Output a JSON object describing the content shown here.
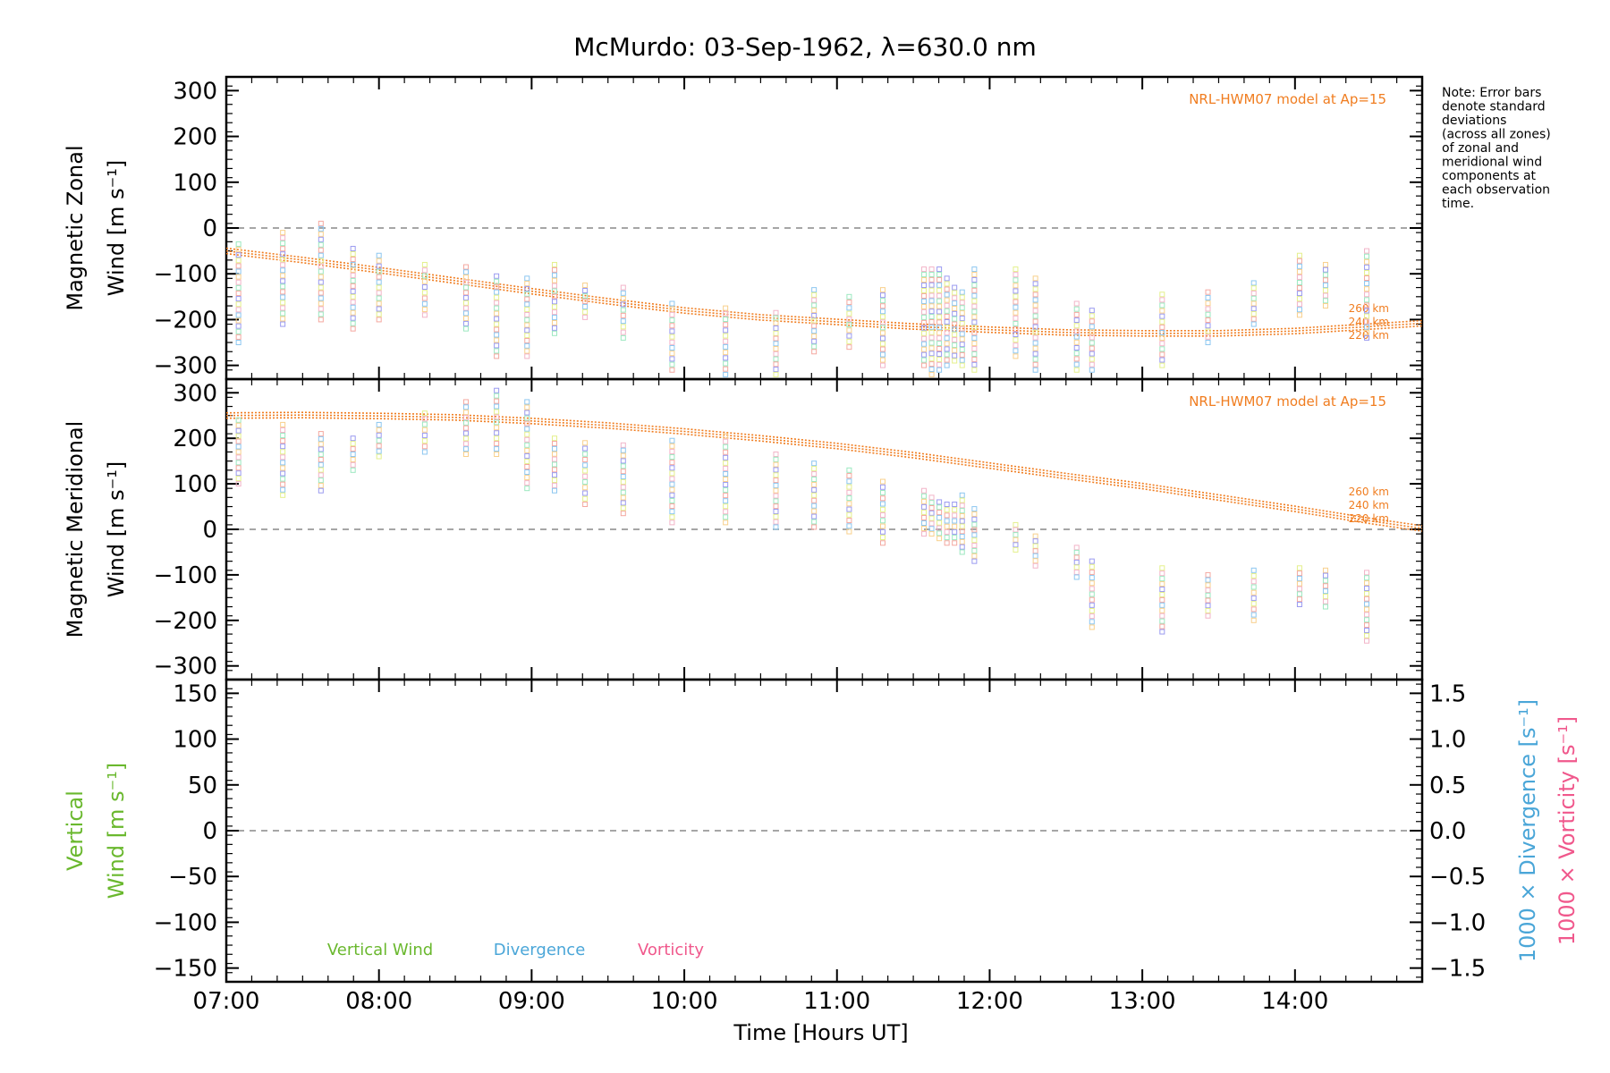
{
  "title": "McMurdo: 03-Sep-1962, λ=630.0 nm",
  "note": [
    "Note: Error bars",
    "denote standard",
    "deviations",
    "(across all zones)",
    "of zonal and",
    "meridional wind",
    "components at",
    "each observation",
    "time."
  ],
  "colors": {
    "model": "#f07d20",
    "vertical": "#6ab82e",
    "divergence": "#4aa6d8",
    "vorticity": "#f0588c",
    "zero_line": "#888888"
  },
  "chart_data": [
    {
      "type": "scatter",
      "panel": "zonal",
      "ylabel_lines": [
        "Magnetic Zonal",
        "Wind [m s⁻¹]"
      ],
      "ylim": [
        -330,
        330
      ],
      "yticks": [
        300,
        200,
        100,
        0,
        -100,
        -200,
        -300
      ],
      "xlim": [
        7.0,
        14.833
      ],
      "model_label": "NRL-HWM07 model at Ap=15",
      "altitude_labels": [
        "260 km",
        "240 km",
        "220 km"
      ],
      "model_curve": {
        "x": [
          7.0,
          7.5,
          8.0,
          8.5,
          9.0,
          9.5,
          10.0,
          10.5,
          11.0,
          11.5,
          12.0,
          12.5,
          13.0,
          13.5,
          14.0,
          14.5,
          14.833
        ],
        "y": [
          -50,
          -70,
          -92,
          -115,
          -138,
          -160,
          -180,
          -195,
          -205,
          -215,
          -222,
          -228,
          -230,
          -230,
          -225,
          -215,
          -208
        ]
      },
      "series": [
        {
          "x": 7.08,
          "y_min": -250,
          "y_max": -35
        },
        {
          "x": 7.37,
          "y_min": -210,
          "y_max": -10
        },
        {
          "x": 7.62,
          "y_min": -200,
          "y_max": 10
        },
        {
          "x": 7.83,
          "y_min": -220,
          "y_max": -45
        },
        {
          "x": 8.0,
          "y_min": -200,
          "y_max": -60
        },
        {
          "x": 8.3,
          "y_min": -190,
          "y_max": -80
        },
        {
          "x": 8.57,
          "y_min": -220,
          "y_max": -85
        },
        {
          "x": 8.77,
          "y_min": -280,
          "y_max": -105
        },
        {
          "x": 8.97,
          "y_min": -280,
          "y_max": -110
        },
        {
          "x": 9.15,
          "y_min": -230,
          "y_max": -80
        },
        {
          "x": 9.35,
          "y_min": -195,
          "y_max": -125
        },
        {
          "x": 9.6,
          "y_min": -240,
          "y_max": -130
        },
        {
          "x": 9.92,
          "y_min": -310,
          "y_max": -165
        },
        {
          "x": 10.27,
          "y_min": -320,
          "y_max": -175
        },
        {
          "x": 10.6,
          "y_min": -320,
          "y_max": -185
        },
        {
          "x": 10.85,
          "y_min": -270,
          "y_max": -135
        },
        {
          "x": 11.08,
          "y_min": -260,
          "y_max": -150
        },
        {
          "x": 11.3,
          "y_min": -300,
          "y_max": -135
        },
        {
          "x": 11.57,
          "y_min": -300,
          "y_max": -90
        },
        {
          "x": 11.62,
          "y_min": -320,
          "y_max": -90
        },
        {
          "x": 11.67,
          "y_min": -310,
          "y_max": -90
        },
        {
          "x": 11.72,
          "y_min": -300,
          "y_max": -110
        },
        {
          "x": 11.77,
          "y_min": -290,
          "y_max": -130
        },
        {
          "x": 11.82,
          "y_min": -300,
          "y_max": -140
        },
        {
          "x": 11.9,
          "y_min": -310,
          "y_max": -90
        },
        {
          "x": 12.17,
          "y_min": -280,
          "y_max": -90
        },
        {
          "x": 12.3,
          "y_min": -310,
          "y_max": -110
        },
        {
          "x": 12.57,
          "y_min": -310,
          "y_max": -165
        },
        {
          "x": 12.67,
          "y_min": -310,
          "y_max": -180
        },
        {
          "x": 13.13,
          "y_min": -300,
          "y_max": -145
        },
        {
          "x": 13.43,
          "y_min": -250,
          "y_max": -140
        },
        {
          "x": 13.73,
          "y_min": -210,
          "y_max": -120
        },
        {
          "x": 14.03,
          "y_min": -190,
          "y_max": -60
        },
        {
          "x": 14.2,
          "y_min": -170,
          "y_max": -80
        },
        {
          "x": 14.47,
          "y_min": -240,
          "y_max": -50
        }
      ]
    },
    {
      "type": "scatter",
      "panel": "meridional",
      "ylabel_lines": [
        "Magnetic Meridional",
        "Wind [m s⁻¹]"
      ],
      "ylim": [
        -330,
        330
      ],
      "yticks": [
        300,
        200,
        100,
        0,
        -100,
        -200,
        -300
      ],
      "xlim": [
        7.0,
        14.833
      ],
      "model_label": "NRL-HWM07 model at Ap=15",
      "altitude_labels": [
        "260 km",
        "240 km",
        "220 km"
      ],
      "model_curve": {
        "x": [
          7.0,
          7.5,
          8.0,
          8.5,
          9.0,
          9.5,
          10.0,
          10.5,
          11.0,
          11.5,
          12.0,
          12.5,
          13.0,
          13.5,
          14.0,
          14.5,
          14.833
        ],
        "y": [
          250,
          251,
          249,
          246,
          238,
          228,
          215,
          200,
          183,
          163,
          140,
          117,
          95,
          70,
          45,
          18,
          2
        ]
      },
      "series": [
        {
          "x": 7.08,
          "y_min": 100,
          "y_max": 240
        },
        {
          "x": 7.37,
          "y_min": 75,
          "y_max": 230
        },
        {
          "x": 7.62,
          "y_min": 85,
          "y_max": 210
        },
        {
          "x": 7.83,
          "y_min": 130,
          "y_max": 200
        },
        {
          "x": 8.0,
          "y_min": 160,
          "y_max": 230
        },
        {
          "x": 8.3,
          "y_min": 170,
          "y_max": 255
        },
        {
          "x": 8.57,
          "y_min": 165,
          "y_max": 280
        },
        {
          "x": 8.77,
          "y_min": 165,
          "y_max": 305
        },
        {
          "x": 8.97,
          "y_min": 90,
          "y_max": 280
        },
        {
          "x": 9.15,
          "y_min": 85,
          "y_max": 200
        },
        {
          "x": 9.35,
          "y_min": 55,
          "y_max": 190
        },
        {
          "x": 9.6,
          "y_min": 35,
          "y_max": 185
        },
        {
          "x": 9.92,
          "y_min": 15,
          "y_max": 195
        },
        {
          "x": 10.27,
          "y_min": 15,
          "y_max": 205
        },
        {
          "x": 10.6,
          "y_min": 5,
          "y_max": 165
        },
        {
          "x": 10.85,
          "y_min": 5,
          "y_max": 145
        },
        {
          "x": 11.08,
          "y_min": -5,
          "y_max": 130
        },
        {
          "x": 11.3,
          "y_min": -30,
          "y_max": 105
        },
        {
          "x": 11.57,
          "y_min": -10,
          "y_max": 85
        },
        {
          "x": 11.62,
          "y_min": -10,
          "y_max": 70
        },
        {
          "x": 11.67,
          "y_min": -20,
          "y_max": 60
        },
        {
          "x": 11.72,
          "y_min": -30,
          "y_max": 55
        },
        {
          "x": 11.77,
          "y_min": -30,
          "y_max": 55
        },
        {
          "x": 11.82,
          "y_min": -50,
          "y_max": 75
        },
        {
          "x": 11.9,
          "y_min": -70,
          "y_max": 45
        },
        {
          "x": 12.17,
          "y_min": -45,
          "y_max": 10
        },
        {
          "x": 12.3,
          "y_min": -80,
          "y_max": -15
        },
        {
          "x": 12.57,
          "y_min": -105,
          "y_max": -40
        },
        {
          "x": 12.67,
          "y_min": -215,
          "y_max": -70
        },
        {
          "x": 13.13,
          "y_min": -225,
          "y_max": -85
        },
        {
          "x": 13.43,
          "y_min": -190,
          "y_max": -100
        },
        {
          "x": 13.73,
          "y_min": -200,
          "y_max": -90
        },
        {
          "x": 14.03,
          "y_min": -165,
          "y_max": -85
        },
        {
          "x": 14.2,
          "y_min": -170,
          "y_max": -90
        },
        {
          "x": 14.47,
          "y_min": -245,
          "y_max": -95
        }
      ]
    },
    {
      "type": "line",
      "panel": "vertical",
      "ylabel_lines": [
        "Vertical",
        "Wind [m s⁻¹]"
      ],
      "ylim": [
        -165,
        165
      ],
      "yticks": [
        150,
        100,
        50,
        0,
        -50,
        -100,
        -150
      ],
      "xlim": [
        7.0,
        14.833
      ],
      "right_axis": {
        "ylim": [
          -1.65,
          1.65
        ],
        "yticks": [
          1.5,
          1.0,
          0.5,
          0.0,
          -0.5,
          -1.0,
          -1.5
        ],
        "tick_labels": [
          "1.5",
          "1.0",
          "0.5",
          "0.0",
          "−0.5",
          "−1.0",
          "−1.5"
        ],
        "label_divergence": "1000 × Divergence [s⁻¹]",
        "label_vorticity": "1000 × Vorticity [s⁻¹]"
      },
      "legend": [
        "Vertical Wind",
        "Divergence",
        "Vorticity"
      ],
      "series": []
    }
  ],
  "xaxis": {
    "label": "Time [Hours UT]",
    "ticks": [
      7,
      8,
      9,
      10,
      11,
      12,
      13,
      14
    ],
    "tick_labels": [
      "07:00",
      "08:00",
      "09:00",
      "10:00",
      "11:00",
      "12:00",
      "13:00",
      "14:00"
    ]
  }
}
